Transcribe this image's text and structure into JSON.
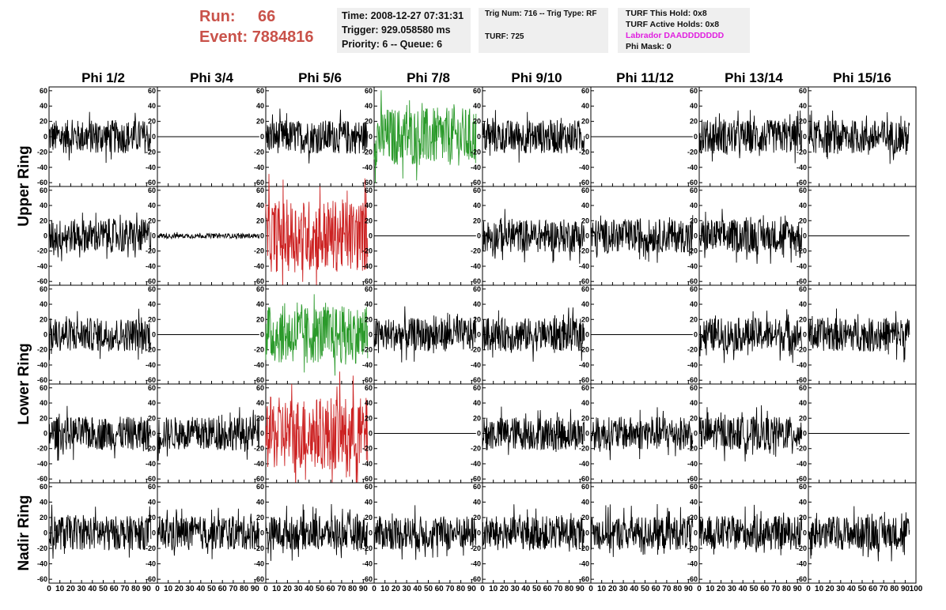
{
  "header": {
    "run_label": "Run:",
    "run_value": "66",
    "event_label": "Event:",
    "event_value": "7884816",
    "time_line": "Time: 2008-12-27 07:31:31",
    "trigger_line": "Trigger: 929.058580 ms",
    "priority_line": "Priority: 6 -- Queue: 6",
    "trig_line": "Trig Num: 716 -- Trig Type: RF",
    "turf_line": "TURF: 725",
    "turf_this_hold": "TURF This Hold: 0x8",
    "turf_active_holds": "TURF Active Holds: 0x8",
    "labrador": "Labrador DAADDDDDDD",
    "phi_mask": "Phi Mask: 0"
  },
  "colors": {
    "run_text": "#c9524a",
    "info_bg": "#efefef",
    "labrador": "#e020e0",
    "trace_black": "#000000",
    "trace_green": "#2b9a2b",
    "trace_red": "#cc2222"
  },
  "chart_data": {
    "type": "line",
    "columns": [
      "Phi 1/2",
      "Phi 3/4",
      "Phi 5/6",
      "Phi 7/8",
      "Phi 9/10",
      "Phi 11/12",
      "Phi 13/14",
      "Phi 15/16"
    ],
    "rows": [
      "Upper Ring",
      "Upper Ring",
      "Lower Ring",
      "Lower Ring",
      "Nadir Ring"
    ],
    "ring_labels": [
      "Upper Ring",
      "Lower Ring",
      "Nadir Ring"
    ],
    "xlim": [
      0,
      100
    ],
    "ylim": [
      -65,
      65
    ],
    "y_ticks": [
      "60",
      "40",
      "20",
      "0",
      "-20",
      "-40",
      "-60"
    ],
    "x_ticks": [
      "0",
      "10",
      "20",
      "30",
      "40",
      "50",
      "60",
      "70",
      "80",
      "90",
      "100"
    ],
    "panels": [
      [
        "normal",
        "flat",
        "normal",
        "green",
        "normal",
        "flat",
        "normal",
        "normal"
      ],
      [
        "normal",
        "small",
        "red",
        "flat",
        "normal",
        "normal",
        "normal",
        "flat"
      ],
      [
        "normal",
        "flat",
        "green",
        "normal",
        "normal",
        "flat",
        "normal",
        "normal"
      ],
      [
        "normal",
        "normal",
        "red",
        "flat",
        "normal",
        "normal",
        "normal",
        "flat"
      ],
      [
        "normal",
        "normal",
        "normal",
        "normal",
        "normal",
        "normal",
        "normal",
        "normal"
      ]
    ]
  }
}
